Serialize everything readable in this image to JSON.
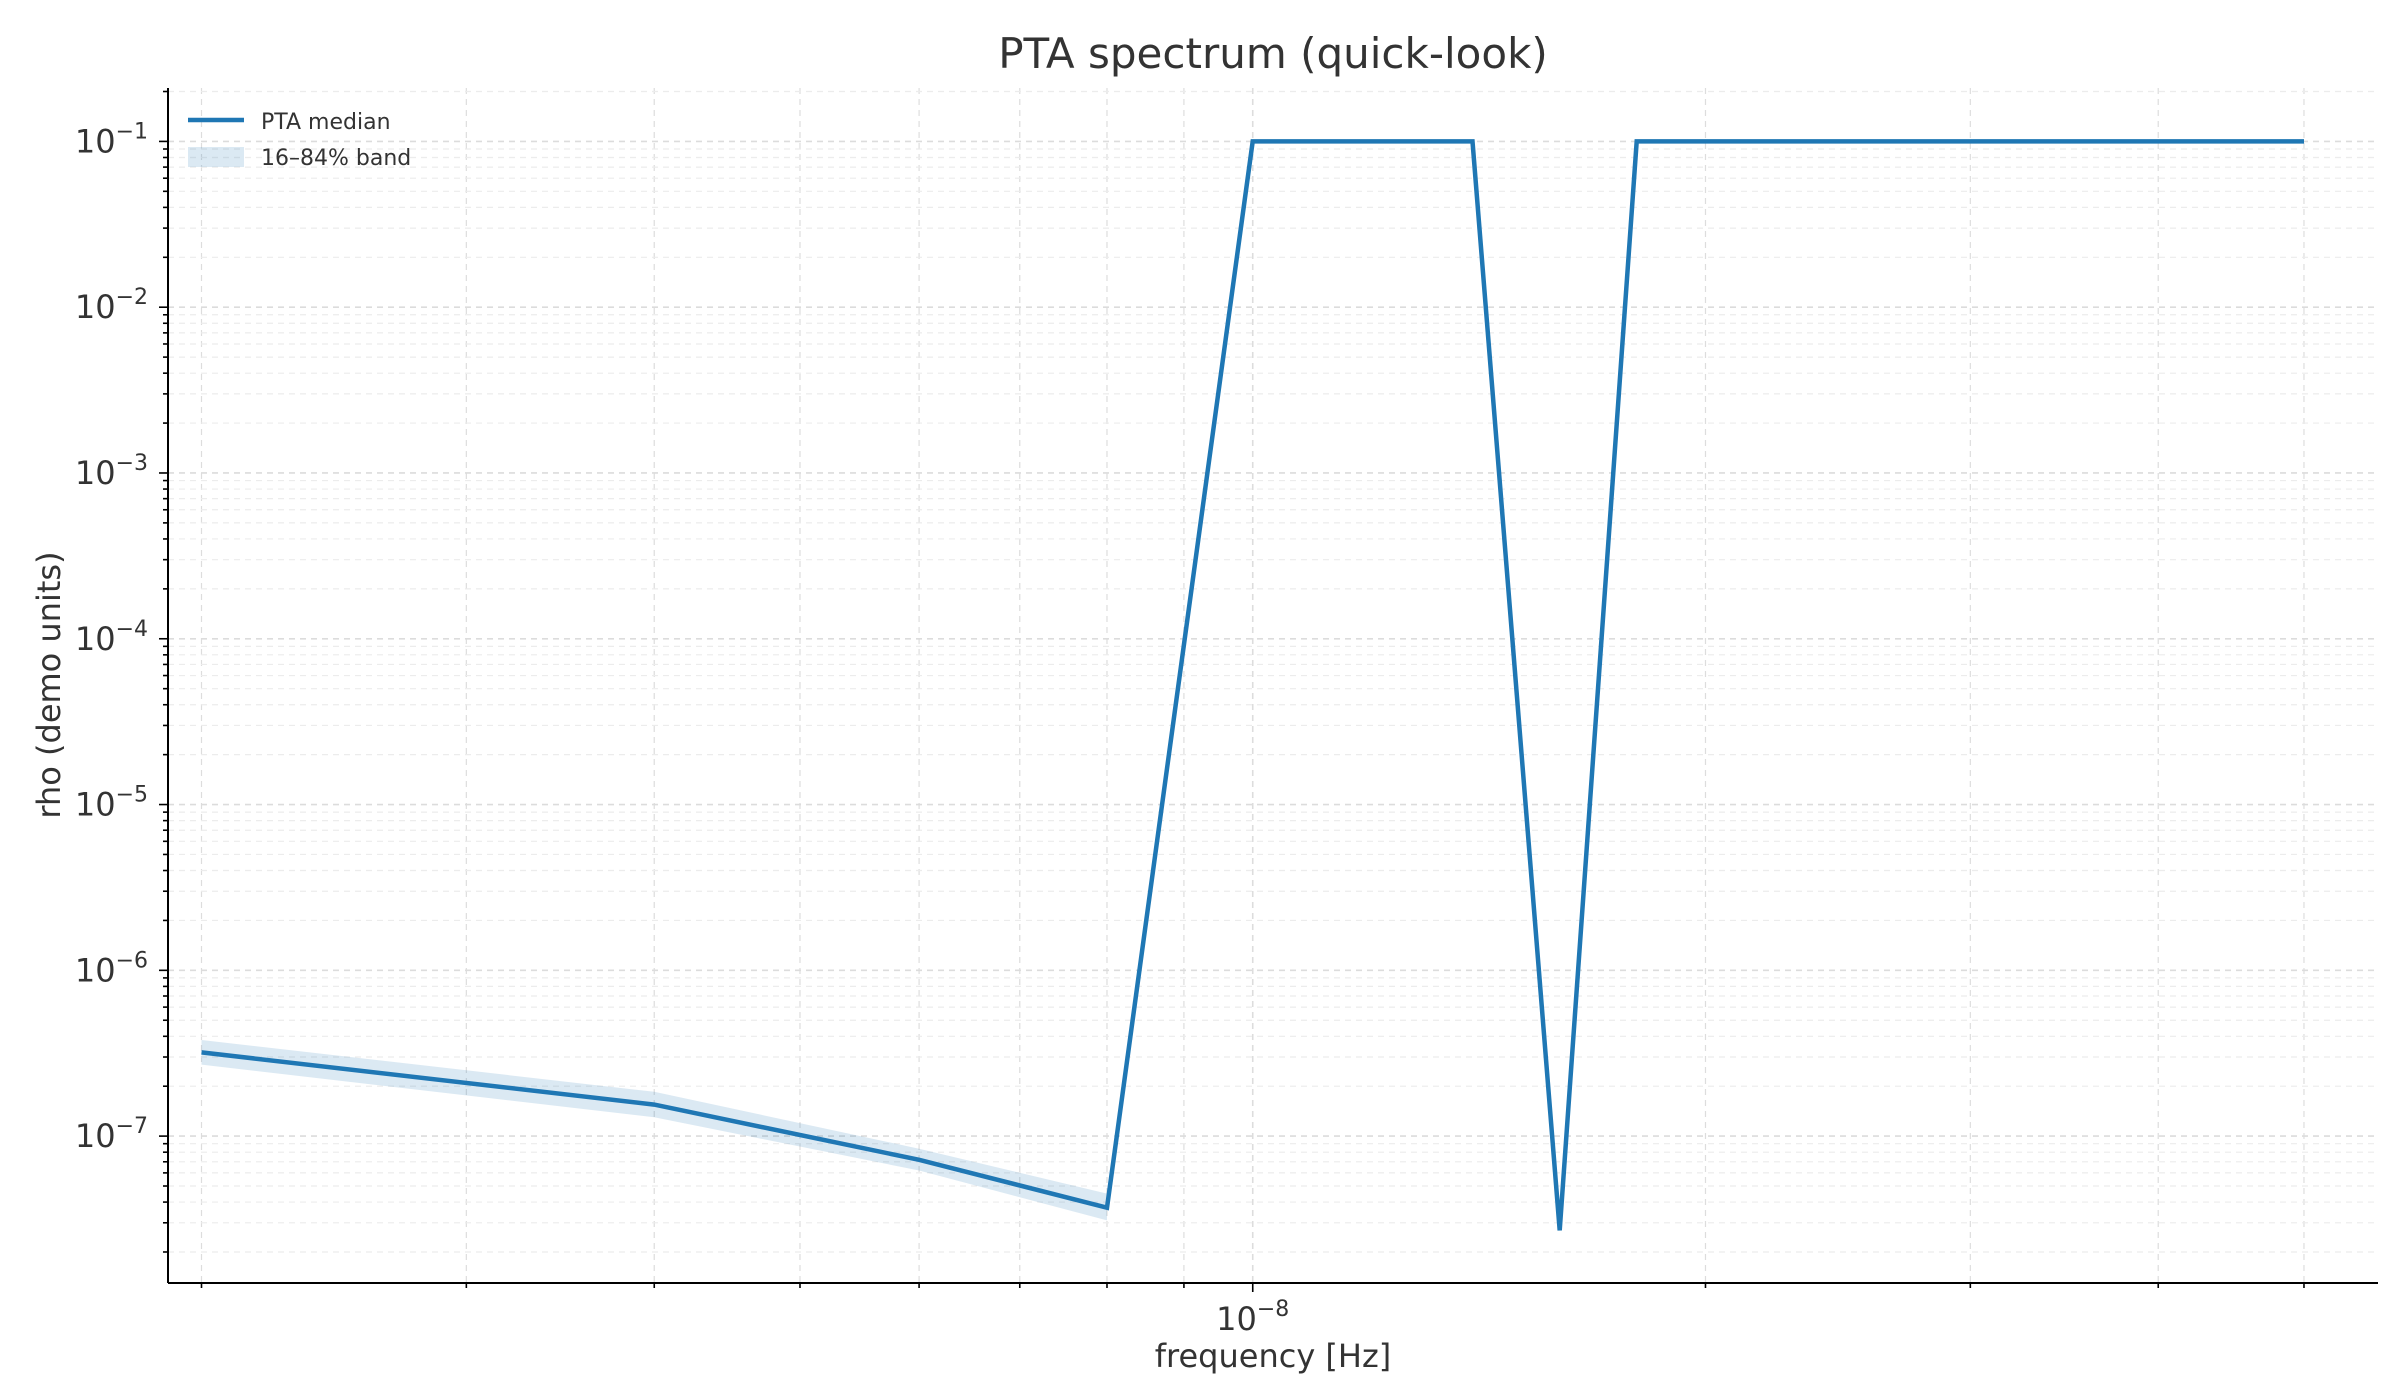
{
  "chart_data": {
    "type": "line",
    "title": "PTA spectrum (quick-look)",
    "xlabel": "frequency [Hz]",
    "ylabel": "rho (demo units)",
    "xscale": "log",
    "yscale": "log",
    "xlim": [
      1.9e-09,
      5.6e-08
    ],
    "ylim": [
      1.3e-08,
      0.21
    ],
    "grid": true,
    "legend_position": "top-left",
    "x_ticks": [
      {
        "value": 1e-08,
        "base": "10",
        "exp": "−8"
      }
    ],
    "y_ticks": [
      {
        "value": 1e-07,
        "base": "10",
        "exp": "−7"
      },
      {
        "value": 1e-06,
        "base": "10",
        "exp": "−6"
      },
      {
        "value": 1e-05,
        "base": "10",
        "exp": "−5"
      },
      {
        "value": 0.0001,
        "base": "10",
        "exp": "−4"
      },
      {
        "value": 0.001,
        "base": "10",
        "exp": "−3"
      },
      {
        "value": 0.01,
        "base": "10",
        "exp": "−2"
      },
      {
        "value": 0.1,
        "base": "10",
        "exp": "−1"
      }
    ],
    "series": [
      {
        "name": "PTA median",
        "color": "#1f77b4",
        "x": [
          2e-09,
          4e-09,
          6e-09,
          8e-09,
          1e-08,
          1.4e-08,
          1.6e-08,
          1.8e-08,
          5e-08
        ],
        "y": [
          3.2e-07,
          1.55e-07,
          7.2e-08,
          3.7e-08,
          0.1,
          0.1,
          2.7e-08,
          0.1,
          0.1
        ]
      }
    ],
    "band": {
      "name": "16–84% band",
      "color": "#1f77b4",
      "x": [
        2e-09,
        4e-09,
        6e-09,
        8e-09
      ],
      "lower": [
        2.7e-07,
        1.3e-07,
        6.2e-08,
        3.1e-08
      ],
      "upper": [
        3.8e-07,
        1.85e-07,
        8.4e-08,
        4.5e-08
      ]
    }
  }
}
